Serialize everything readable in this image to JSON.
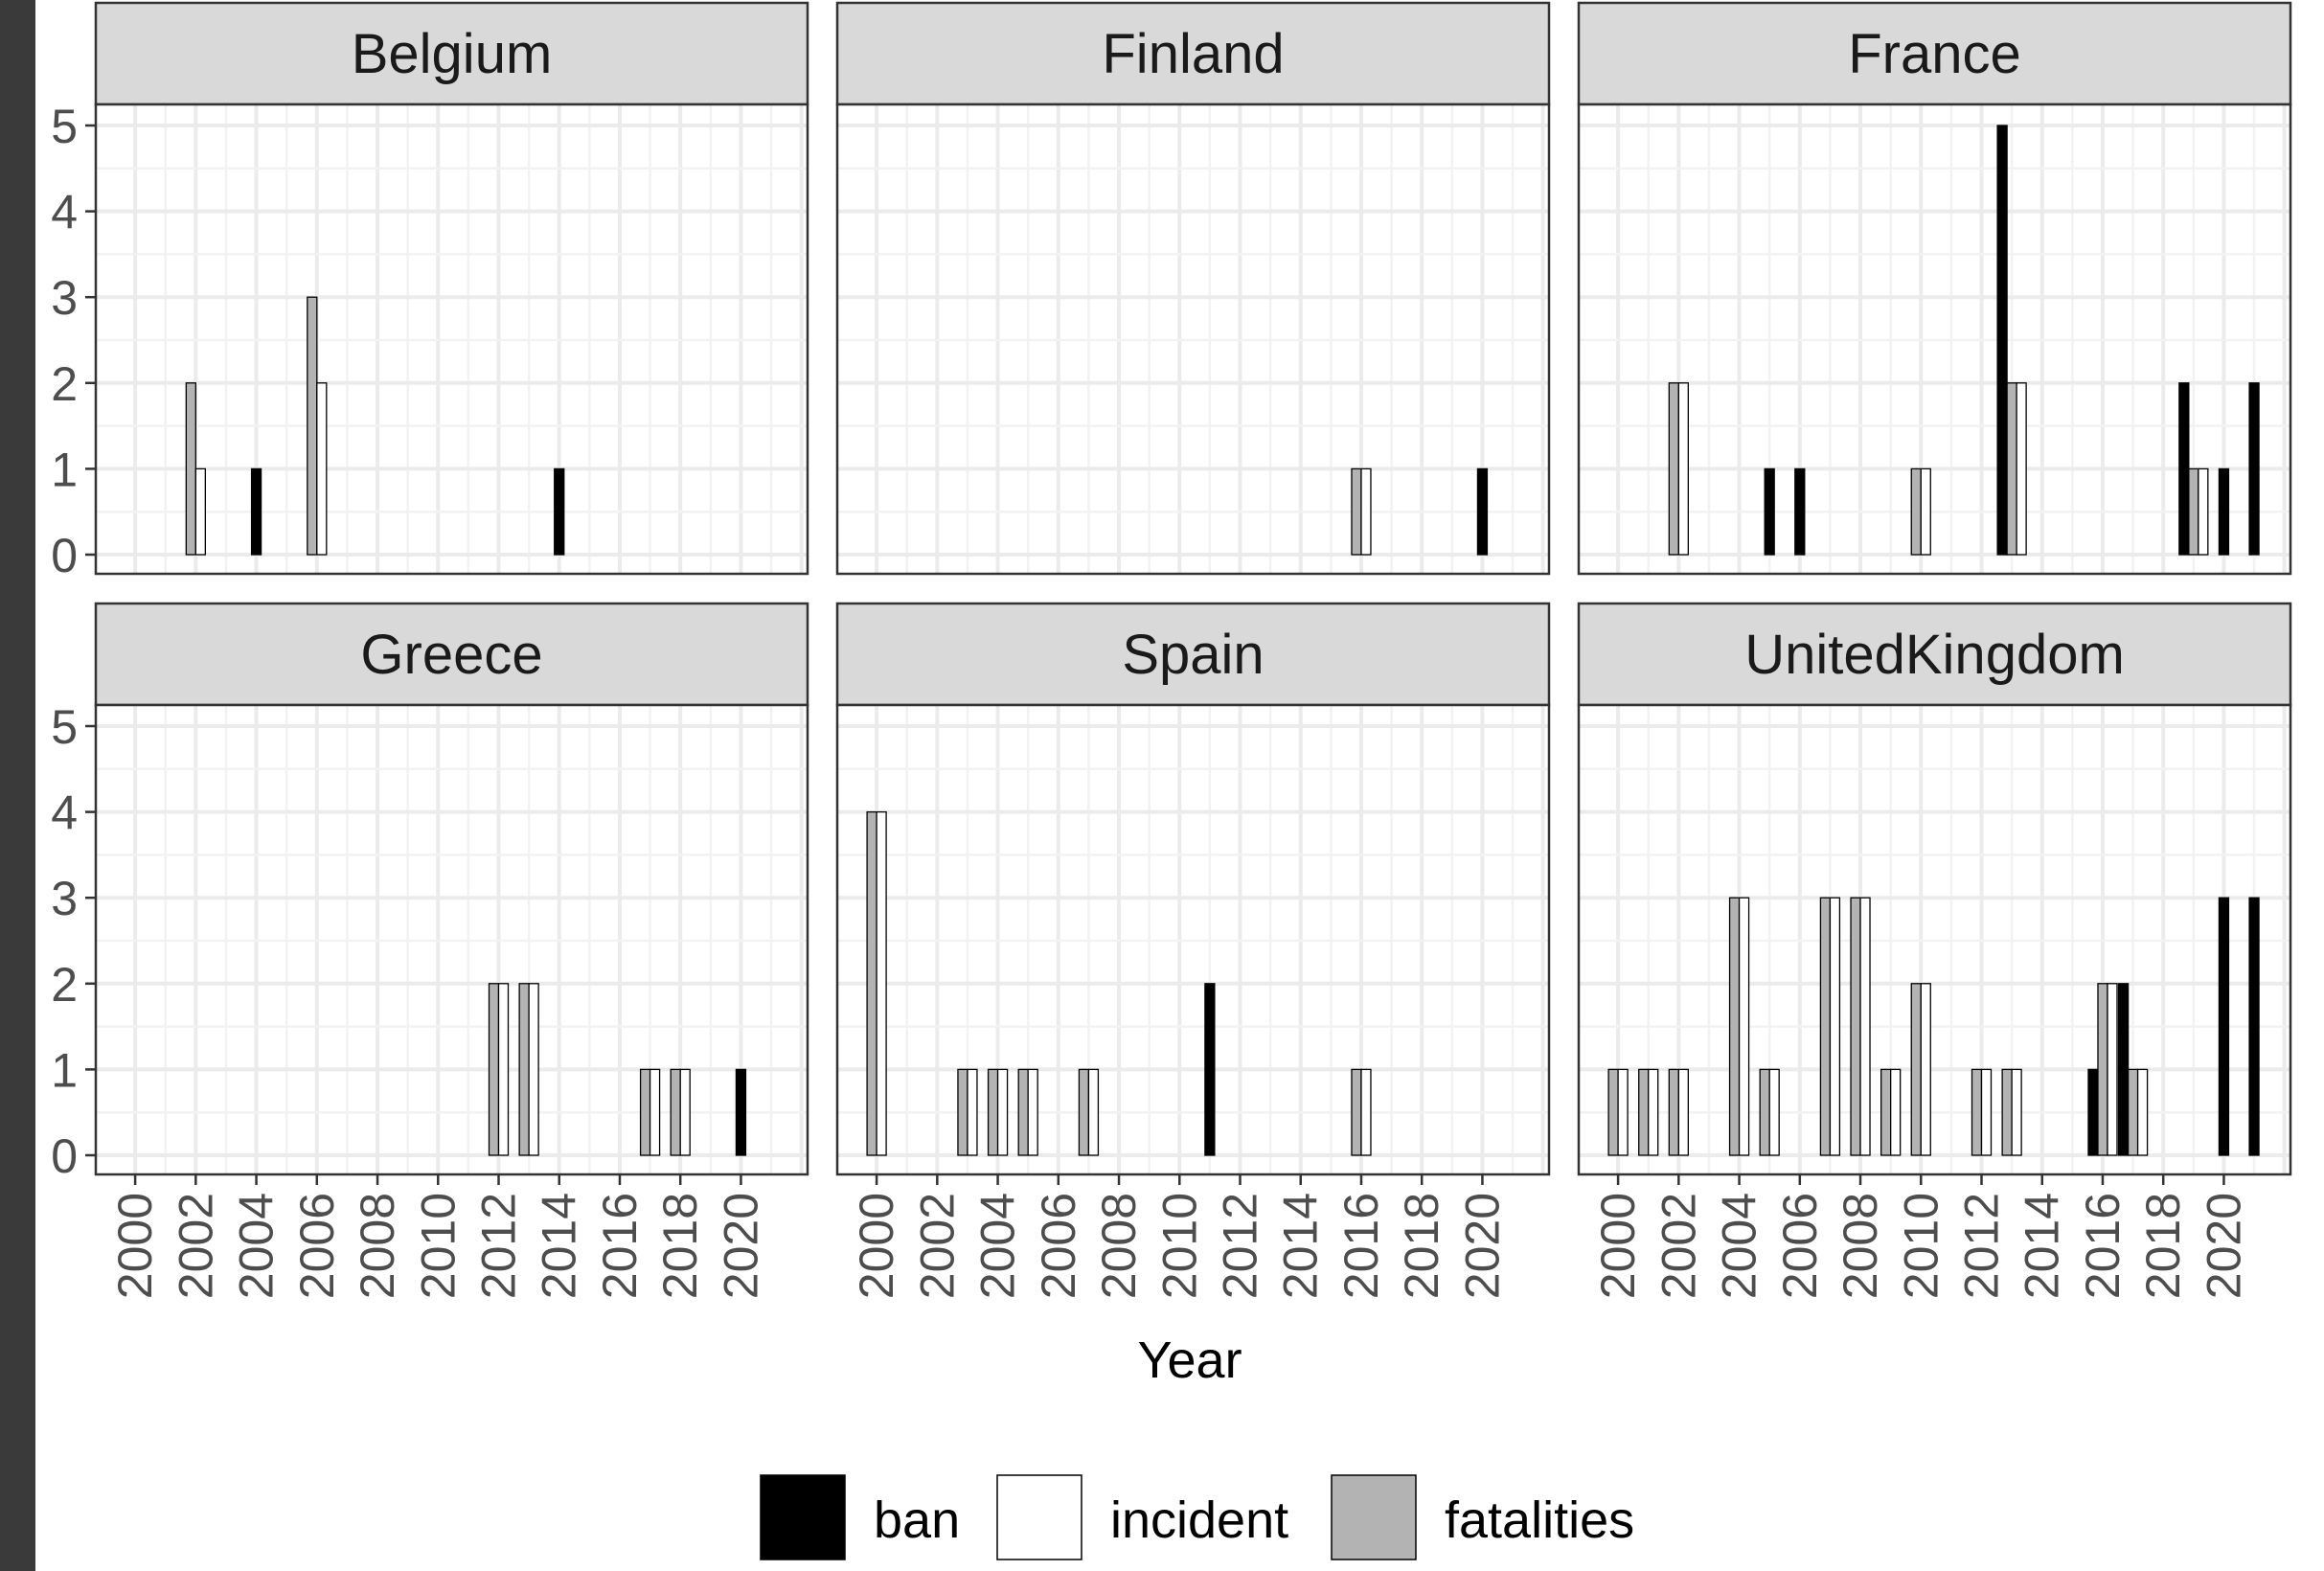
{
  "chart_data": {
    "type": "bar",
    "xlabel": "Year",
    "ylabel": "",
    "ylim": [
      0,
      5
    ],
    "y_ticks": [
      "0",
      "1",
      "2",
      "3",
      "4",
      "5"
    ],
    "x_ticks": [
      "2000",
      "2002",
      "2004",
      "2006",
      "2008",
      "2010",
      "2012",
      "2014",
      "2016",
      "2018",
      "2020"
    ],
    "x_range": [
      1998.7,
      2022.2
    ],
    "grid": true,
    "legend_position": "bottom",
    "legend": [
      {
        "key": "ban",
        "label": "ban",
        "color": "#000000"
      },
      {
        "key": "incident",
        "label": "incident",
        "color": "#ffffff"
      },
      {
        "key": "fatalities",
        "label": "fatalities",
        "color": "#b3b3b3"
      }
    ],
    "panels": [
      {
        "title": "Belgium",
        "bars": [
          {
            "year": 2002,
            "incident": 1,
            "fatalities": 2
          },
          {
            "year": 2004,
            "ban": 1
          },
          {
            "year": 2006,
            "incident": 2,
            "fatalities": 3
          },
          {
            "year": 2014,
            "ban": 1
          }
        ]
      },
      {
        "title": "Finland",
        "bars": [
          {
            "year": 2016,
            "incident": 1,
            "fatalities": 1
          },
          {
            "year": 2020,
            "ban": 1
          }
        ]
      },
      {
        "title": "France",
        "bars": [
          {
            "year": 2002,
            "incident": 2,
            "fatalities": 2
          },
          {
            "year": 2005,
            "ban": 1
          },
          {
            "year": 2006,
            "ban": 1
          },
          {
            "year": 2010,
            "incident": 1,
            "fatalities": 1
          },
          {
            "year": 2013,
            "ban": 5,
            "incident": 2,
            "fatalities": 2
          },
          {
            "year": 2019,
            "ban": 2,
            "incident": 1,
            "fatalities": 1
          },
          {
            "year": 2020,
            "ban": 1
          },
          {
            "year": 2021,
            "ban": 2
          }
        ]
      },
      {
        "title": "Greece",
        "bars": [
          {
            "year": 2012,
            "incident": 2,
            "fatalities": 2
          },
          {
            "year": 2013,
            "incident": 2,
            "fatalities": 2
          },
          {
            "year": 2017,
            "incident": 1,
            "fatalities": 1
          },
          {
            "year": 2018,
            "incident": 1,
            "fatalities": 1
          },
          {
            "year": 2020,
            "ban": 1
          }
        ]
      },
      {
        "title": "Spain",
        "bars": [
          {
            "year": 2000,
            "incident": 4,
            "fatalities": 4
          },
          {
            "year": 2003,
            "incident": 1,
            "fatalities": 1
          },
          {
            "year": 2004,
            "incident": 1,
            "fatalities": 1
          },
          {
            "year": 2005,
            "incident": 1,
            "fatalities": 1
          },
          {
            "year": 2007,
            "incident": 1,
            "fatalities": 1
          },
          {
            "year": 2011,
            "ban": 2
          },
          {
            "year": 2016,
            "incident": 1,
            "fatalities": 1
          }
        ]
      },
      {
        "title": "UnitedKingdom",
        "bars": [
          {
            "year": 2000,
            "incident": 1,
            "fatalities": 1
          },
          {
            "year": 2001,
            "incident": 1,
            "fatalities": 1
          },
          {
            "year": 2002,
            "incident": 1,
            "fatalities": 1
          },
          {
            "year": 2004,
            "incident": 3,
            "fatalities": 3
          },
          {
            "year": 2005,
            "incident": 1,
            "fatalities": 1
          },
          {
            "year": 2007,
            "incident": 3,
            "fatalities": 3
          },
          {
            "year": 2008,
            "incident": 3,
            "fatalities": 3
          },
          {
            "year": 2009,
            "incident": 1,
            "fatalities": 1
          },
          {
            "year": 2010,
            "incident": 2,
            "fatalities": 2
          },
          {
            "year": 2012,
            "incident": 1,
            "fatalities": 1
          },
          {
            "year": 2013,
            "incident": 1,
            "fatalities": 1
          },
          {
            "year": 2016,
            "ban": 1,
            "incident": 2,
            "fatalities": 2
          },
          {
            "year": 2017,
            "ban": 2,
            "incident": 1,
            "fatalities": 1
          },
          {
            "year": 2020,
            "ban": 3
          },
          {
            "year": 2021,
            "ban": 3
          }
        ]
      }
    ]
  }
}
